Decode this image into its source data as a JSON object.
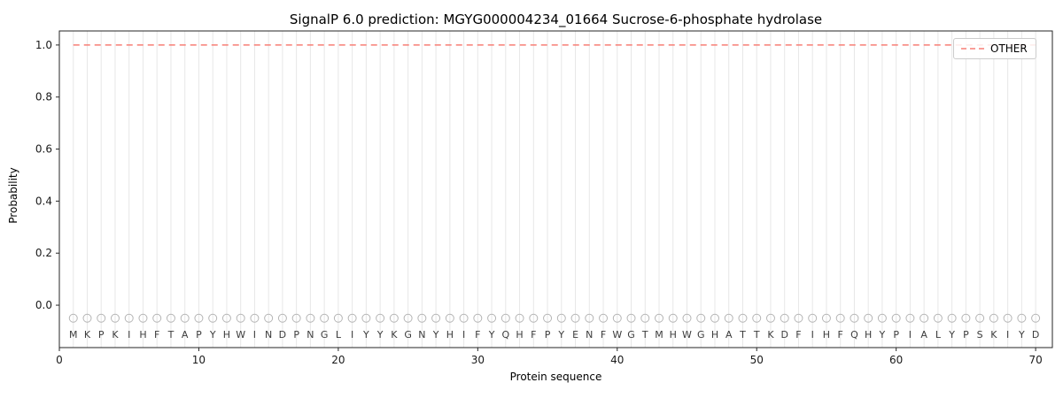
{
  "title": "SignalP 6.0 prediction: MGYG000004234_01664 Sucrose-6-phosphate hydrolase",
  "chart_data": {
    "type": "line",
    "title": "SignalP 6.0 prediction: MGYG000004234_01664 Sucrose-6-phosphate hydrolase",
    "xlabel": "Protein sequence",
    "ylabel": "Probability",
    "xlim": [
      0,
      71.2
    ],
    "ylim": [
      -0.163,
      1.054
    ],
    "xticks": [
      0,
      10,
      20,
      30,
      40,
      50,
      60,
      70
    ],
    "yticks": [
      "0.0",
      "0.2",
      "0.4",
      "0.6",
      "0.8",
      "1.0"
    ],
    "grid": {
      "vertical_per_residue": true,
      "color": "#e7e7e7"
    },
    "sequence": "MKPKIHFTAPYHWINDPNGLIYYKGNYHIFYQHFPYENFWGTMHWGHATTKDFIHFQHYPIALYPSKIYD",
    "sequence_length": 70,
    "series": [
      {
        "name": "OTHER",
        "style": "dashed",
        "color": "#f87e76",
        "values_constant": 1.0,
        "x_start": 1,
        "x_end": 70
      }
    ],
    "residue_markers": {
      "shape": "open-circle",
      "y": -0.05,
      "color": "#b5b5b5"
    },
    "residue_letter_y": -0.112,
    "legend": {
      "position": "upper-right",
      "entries": [
        {
          "label": "OTHER",
          "color": "#f87e76",
          "dash": true
        }
      ]
    }
  }
}
